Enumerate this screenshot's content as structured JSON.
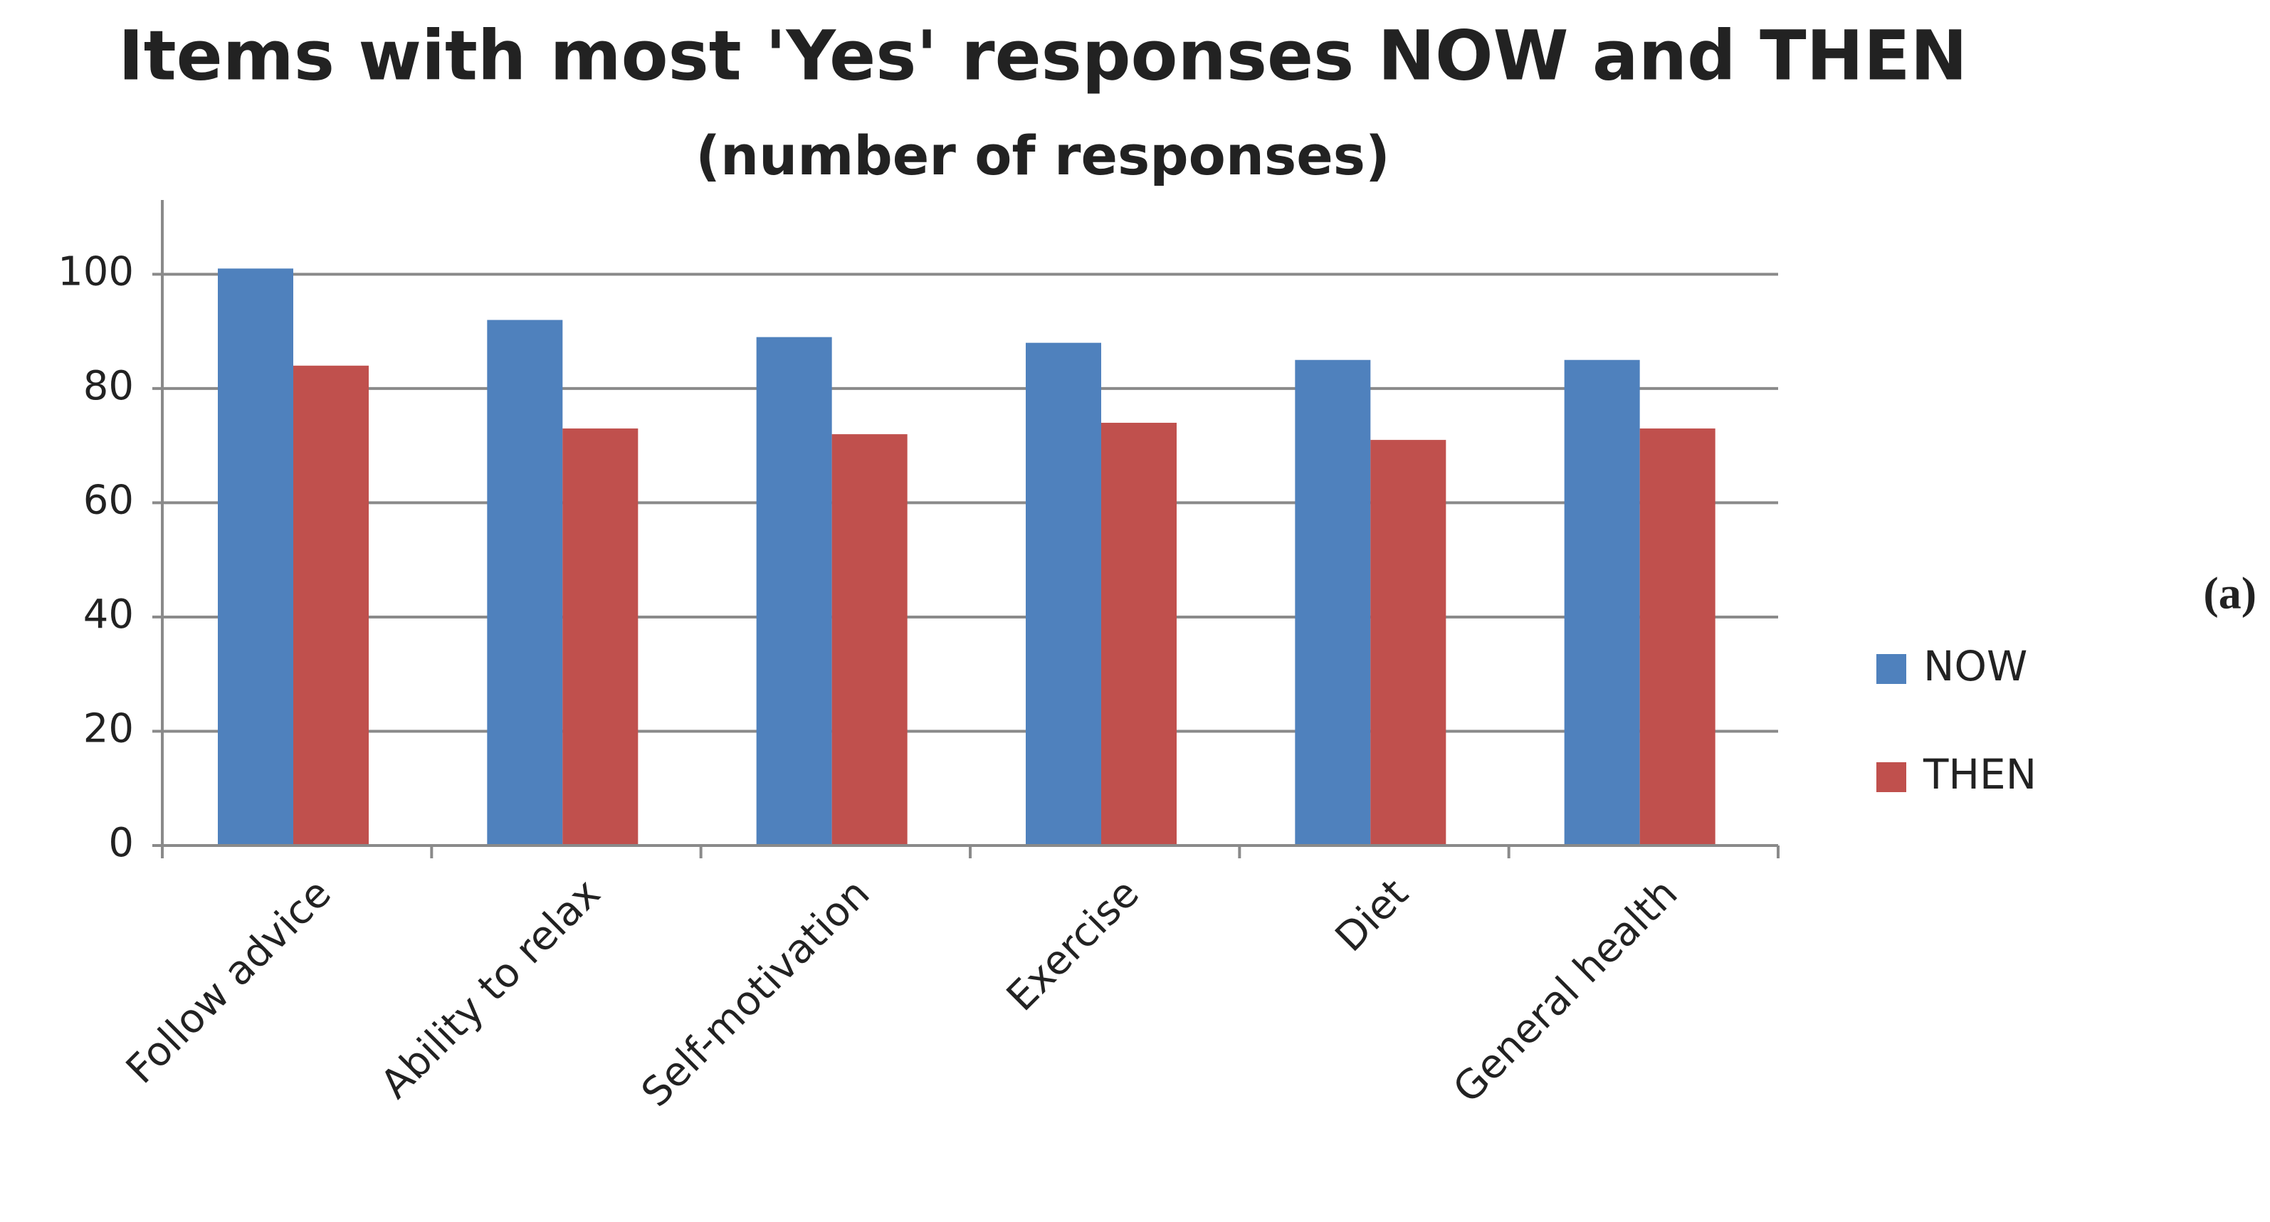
{
  "chart_data": {
    "type": "bar",
    "title": "Items with most 'Yes' responses NOW and THEN",
    "subtitle": "(number of responses)",
    "panel_label": "(a)",
    "categories": [
      "Follow advice",
      "Ability to relax",
      "Self-motivation",
      "Exercise",
      "Diet",
      "General health"
    ],
    "series": [
      {
        "name": "NOW",
        "color": "#4f81bd",
        "values": [
          101,
          92,
          89,
          88,
          85,
          85
        ]
      },
      {
        "name": "THEN",
        "color": "#c0504d",
        "values": [
          84,
          73,
          72,
          74,
          71,
          73
        ]
      }
    ],
    "ylim": [
      0,
      113
    ],
    "yticks": [
      0,
      20,
      40,
      60,
      80,
      100
    ],
    "grid": true,
    "legend": "right"
  }
}
